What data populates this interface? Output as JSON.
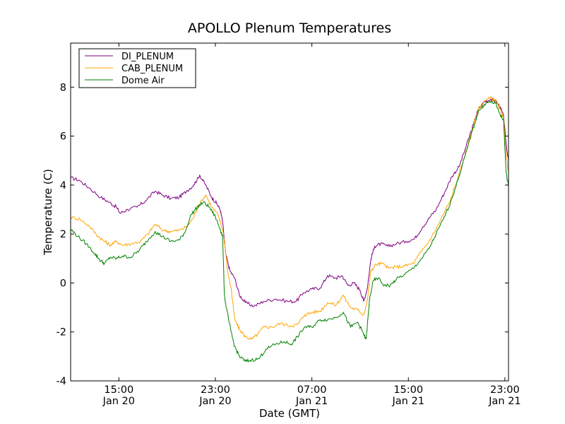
{
  "chart_data": {
    "type": "line",
    "title": "APOLLO Plenum Temperatures",
    "xlabel": "Date (GMT)",
    "ylabel": "Temperature (C)",
    "x_unit": "hours (GMT) starting Jan 20 11:00",
    "xlim": [
      0,
      36.3
    ],
    "ylim": [
      -4,
      9.8
    ],
    "grid": false,
    "legend_position": "top-left",
    "x_ticks": [
      {
        "x": 4,
        "line1": "15:00",
        "line2": "Jan 20"
      },
      {
        "x": 12,
        "line1": "23:00",
        "line2": "Jan 20"
      },
      {
        "x": 20,
        "line1": "07:00",
        "line2": "Jan 21"
      },
      {
        "x": 28,
        "line1": "15:00",
        "line2": "Jan 21"
      },
      {
        "x": 36,
        "line1": "23:00",
        "line2": "Jan 21"
      }
    ],
    "y_ticks": [
      -4,
      -2,
      0,
      2,
      4,
      6,
      8
    ],
    "series": [
      {
        "name": "DI_PLENUM",
        "color": "#800080",
        "points": [
          [
            0,
            4.3
          ],
          [
            0.7,
            4.2
          ],
          [
            1.5,
            3.9
          ],
          [
            2.5,
            3.5
          ],
          [
            3.2,
            3.3
          ],
          [
            3.8,
            3.1
          ],
          [
            4.1,
            2.85
          ],
          [
            4.7,
            3.0
          ],
          [
            5.5,
            3.1
          ],
          [
            6.2,
            3.35
          ],
          [
            7,
            3.75
          ],
          [
            7.6,
            3.6
          ],
          [
            8.3,
            3.45
          ],
          [
            9,
            3.5
          ],
          [
            9.6,
            3.75
          ],
          [
            10.2,
            4.0
          ],
          [
            10.7,
            4.4
          ],
          [
            11.2,
            4.0
          ],
          [
            11.7,
            3.5
          ],
          [
            12.1,
            3.25
          ],
          [
            12.4,
            3.0
          ],
          [
            12.6,
            2.5
          ],
          [
            12.85,
            1.2
          ],
          [
            13.2,
            0.5
          ],
          [
            13.6,
            0.2
          ],
          [
            14.0,
            -0.5
          ],
          [
            14.5,
            -0.8
          ],
          [
            15.2,
            -0.95
          ],
          [
            16,
            -0.75
          ],
          [
            17,
            -0.65
          ],
          [
            18,
            -0.75
          ],
          [
            18.7,
            -0.75
          ],
          [
            19.3,
            -0.4
          ],
          [
            20,
            -0.25
          ],
          [
            20.7,
            -0.2
          ],
          [
            21.3,
            0.3
          ],
          [
            22,
            0.2
          ],
          [
            22.5,
            0.3
          ],
          [
            23,
            -0.1
          ],
          [
            23.5,
            0.0
          ],
          [
            24.0,
            -0.3
          ],
          [
            24.3,
            -0.75
          ],
          [
            24.6,
            -0.2
          ],
          [
            24.9,
            1.0
          ],
          [
            25.2,
            1.5
          ],
          [
            25.7,
            1.6
          ],
          [
            26.3,
            1.5
          ],
          [
            27,
            1.6
          ],
          [
            27.8,
            1.7
          ],
          [
            28.5,
            1.8
          ],
          [
            29.2,
            2.3
          ],
          [
            29.8,
            2.7
          ],
          [
            30.3,
            3.0
          ],
          [
            31,
            3.7
          ],
          [
            31.6,
            4.35
          ],
          [
            32.2,
            4.75
          ],
          [
            32.8,
            5.6
          ],
          [
            33.4,
            6.5
          ],
          [
            33.8,
            7.1
          ],
          [
            34.3,
            7.4
          ],
          [
            34.8,
            7.5
          ],
          [
            35.2,
            7.45
          ],
          [
            35.6,
            7.2
          ],
          [
            35.9,
            6.8
          ],
          [
            36.1,
            5.7
          ],
          [
            36.3,
            5.0
          ]
        ]
      },
      {
        "name": "CAB_PLENUM",
        "color": "#ffa500",
        "points": [
          [
            0,
            2.7
          ],
          [
            0.8,
            2.6
          ],
          [
            1.6,
            2.3
          ],
          [
            2.3,
            1.9
          ],
          [
            2.8,
            1.7
          ],
          [
            3.3,
            1.55
          ],
          [
            3.8,
            1.7
          ],
          [
            4.3,
            1.55
          ],
          [
            5,
            1.6
          ],
          [
            5.8,
            1.7
          ],
          [
            6.4,
            2.0
          ],
          [
            7,
            2.4
          ],
          [
            7.7,
            2.15
          ],
          [
            8.3,
            2.1
          ],
          [
            9,
            2.15
          ],
          [
            9.6,
            2.3
          ],
          [
            10.1,
            2.6
          ],
          [
            10.6,
            3.15
          ],
          [
            11.2,
            3.6
          ],
          [
            11.7,
            3.1
          ],
          [
            12.2,
            2.8
          ],
          [
            12.6,
            2.2
          ],
          [
            12.8,
            1.5
          ],
          [
            13,
            0.5
          ],
          [
            13.3,
            -0.2
          ],
          [
            13.6,
            -1.5
          ],
          [
            14,
            -1.9
          ],
          [
            14.5,
            -2.2
          ],
          [
            15,
            -2.3
          ],
          [
            15.5,
            -2.1
          ],
          [
            16,
            -1.8
          ],
          [
            16.7,
            -1.8
          ],
          [
            17.4,
            -1.65
          ],
          [
            18.2,
            -1.75
          ],
          [
            18.8,
            -1.7
          ],
          [
            19.4,
            -1.3
          ],
          [
            20,
            -1.2
          ],
          [
            20.7,
            -1.15
          ],
          [
            21.3,
            -0.8
          ],
          [
            22,
            -0.9
          ],
          [
            22.6,
            -0.5
          ],
          [
            23.2,
            -1.0
          ],
          [
            23.8,
            -1.1
          ],
          [
            24.3,
            -1.3
          ],
          [
            24.6,
            -0.7
          ],
          [
            24.9,
            0.5
          ],
          [
            25.3,
            0.75
          ],
          [
            25.8,
            0.8
          ],
          [
            26.4,
            0.6
          ],
          [
            27,
            0.65
          ],
          [
            27.7,
            0.7
          ],
          [
            28.4,
            0.8
          ],
          [
            29.1,
            1.3
          ],
          [
            29.7,
            1.7
          ],
          [
            30.3,
            2.2
          ],
          [
            30.9,
            2.8
          ],
          [
            31.5,
            3.4
          ],
          [
            32.1,
            4.3
          ],
          [
            32.7,
            5.2
          ],
          [
            33.3,
            6.3
          ],
          [
            33.8,
            7.1
          ],
          [
            34.3,
            7.45
          ],
          [
            34.8,
            7.55
          ],
          [
            35.2,
            7.5
          ],
          [
            35.6,
            7.1
          ],
          [
            35.9,
            6.7
          ],
          [
            36.1,
            5.3
          ],
          [
            36.3,
            4.5
          ]
        ]
      },
      {
        "name": "Dome Air",
        "color": "#008000",
        "points": [
          [
            0,
            2.2
          ],
          [
            0.6,
            1.9
          ],
          [
            1.3,
            1.6
          ],
          [
            2,
            1.2
          ],
          [
            2.4,
            0.95
          ],
          [
            2.8,
            0.8
          ],
          [
            3.3,
            1.05
          ],
          [
            3.8,
            1.0
          ],
          [
            4.3,
            1.1
          ],
          [
            5,
            1.05
          ],
          [
            5.7,
            1.35
          ],
          [
            6.3,
            1.7
          ],
          [
            7,
            2.1
          ],
          [
            7.6,
            1.9
          ],
          [
            8.3,
            1.7
          ],
          [
            9,
            1.75
          ],
          [
            9.5,
            2.1
          ],
          [
            10,
            2.8
          ],
          [
            10.5,
            3.1
          ],
          [
            11,
            3.3
          ],
          [
            11.5,
            3.1
          ],
          [
            12,
            2.7
          ],
          [
            12.4,
            2.2
          ],
          [
            12.6,
            1.9
          ],
          [
            12.75,
            -0.5
          ],
          [
            12.9,
            -1.0
          ],
          [
            13.3,
            -2.0
          ],
          [
            13.6,
            -2.6
          ],
          [
            14,
            -3.0
          ],
          [
            14.5,
            -3.2
          ],
          [
            15,
            -3.15
          ],
          [
            15.6,
            -3.1
          ],
          [
            16.2,
            -2.7
          ],
          [
            17,
            -2.5
          ],
          [
            17.7,
            -2.4
          ],
          [
            18.3,
            -2.5
          ],
          [
            18.8,
            -2.2
          ],
          [
            19.4,
            -1.8
          ],
          [
            20,
            -1.8
          ],
          [
            20.7,
            -1.5
          ],
          [
            21.3,
            -1.5
          ],
          [
            22,
            -1.4
          ],
          [
            22.6,
            -1.2
          ],
          [
            23.2,
            -1.8
          ],
          [
            23.8,
            -1.6
          ],
          [
            24.3,
            -2.1
          ],
          [
            24.5,
            -2.3
          ],
          [
            24.8,
            -0.6
          ],
          [
            25.1,
            0.1
          ],
          [
            25.5,
            0.2
          ],
          [
            26,
            -0.1
          ],
          [
            26.5,
            -0.1
          ],
          [
            27,
            0.15
          ],
          [
            27.7,
            0.35
          ],
          [
            28.4,
            0.6
          ],
          [
            29.1,
            1.0
          ],
          [
            29.7,
            1.4
          ],
          [
            30.3,
            2.0
          ],
          [
            30.9,
            2.6
          ],
          [
            31.5,
            3.3
          ],
          [
            32.1,
            4.2
          ],
          [
            32.7,
            5.2
          ],
          [
            33.3,
            6.2
          ],
          [
            33.8,
            7.0
          ],
          [
            34.3,
            7.3
          ],
          [
            34.8,
            7.4
          ],
          [
            35.2,
            7.35
          ],
          [
            35.6,
            6.9
          ],
          [
            35.9,
            6.6
          ],
          [
            36.1,
            4.5
          ],
          [
            36.3,
            4.0
          ]
        ]
      }
    ]
  }
}
